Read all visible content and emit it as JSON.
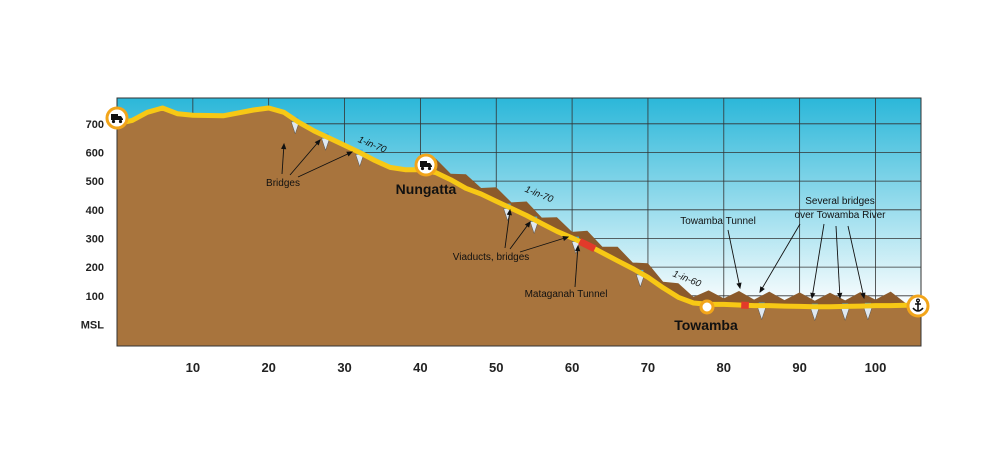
{
  "chart_data": {
    "type": "area",
    "x_ticks": [
      10,
      20,
      30,
      40,
      50,
      60,
      70,
      80,
      90,
      100
    ],
    "xlim": [
      0,
      106
    ],
    "y_ticks": [
      {
        "value": 0,
        "label": "MSL"
      },
      {
        "value": 100,
        "label": "100"
      },
      {
        "value": 200,
        "label": "200"
      },
      {
        "value": 300,
        "label": "300"
      },
      {
        "value": 400,
        "label": "400"
      },
      {
        "value": 500,
        "label": "500"
      },
      {
        "value": 600,
        "label": "600"
      },
      {
        "value": 700,
        "label": "700"
      }
    ],
    "ylim": [
      -75,
      790
    ],
    "route": {
      "x": [
        0,
        2,
        4,
        6,
        8,
        10,
        14,
        18,
        20,
        22,
        24,
        26,
        28,
        30,
        32,
        34,
        36,
        38,
        40,
        42,
        44,
        46,
        48,
        50,
        52,
        54,
        56,
        58,
        60,
        62,
        64,
        66,
        68,
        70,
        72,
        74,
        76,
        78,
        80,
        82,
        84,
        86,
        88,
        90,
        92,
        94,
        96,
        98,
        100,
        102,
        104,
        106
      ],
      "y": [
        700,
        712,
        740,
        755,
        735,
        730,
        728,
        748,
        755,
        740,
        705,
        675,
        650,
        625,
        600,
        572,
        548,
        540,
        540,
        530,
        505,
        475,
        455,
        430,
        405,
        380,
        352,
        325,
        302,
        278,
        250,
        222,
        195,
        165,
        128,
        95,
        75,
        70,
        70,
        68,
        66,
        66,
        64,
        63,
        62,
        62,
        63,
        64,
        66,
        66,
        67,
        67
      ]
    },
    "places": [
      {
        "name": "Nungatta",
        "x": 41,
        "y": 540
      },
      {
        "name": "Towamba",
        "x": 78,
        "y": 70
      }
    ],
    "annotations": {
      "bridges": "Bridges",
      "viaducts": "Viaducts, bridges",
      "mataganah_tunnel": "Mataganah Tunnel",
      "towamba_tunnel": "Towamba Tunnel",
      "several_bridges_line1": "Several bridges",
      "several_bridges_line2": "over Towamba River"
    },
    "gradients": [
      {
        "label": "1-in-70",
        "x": 33.5,
        "y": 618
      },
      {
        "label": "1-in-70",
        "x": 55.5,
        "y": 445
      },
      {
        "label": "1-in-60",
        "x": 75,
        "y": 150
      }
    ],
    "bridges_km": [
      23.5,
      27.5,
      32,
      51.5,
      55,
      60.5,
      69,
      85,
      92,
      96,
      99
    ],
    "tunnels": [
      {
        "name": "Mataganah Tunnel",
        "from": 61,
        "to": 63
      },
      {
        "name": "Towamba Tunnel",
        "from": 82.3,
        "to": 83.3
      }
    ],
    "icons": {
      "start": "truck-icon",
      "nungatta": "truck-icon",
      "end": "anchor-icon"
    },
    "colors": {
      "sky_top": "#2bb7d9",
      "sky_bottom": "#ffffff",
      "ground": "#a8743d",
      "route": "#f7c815",
      "tunnel": "#e23a2a",
      "bridge": "#43a8de"
    },
    "grid": true
  }
}
